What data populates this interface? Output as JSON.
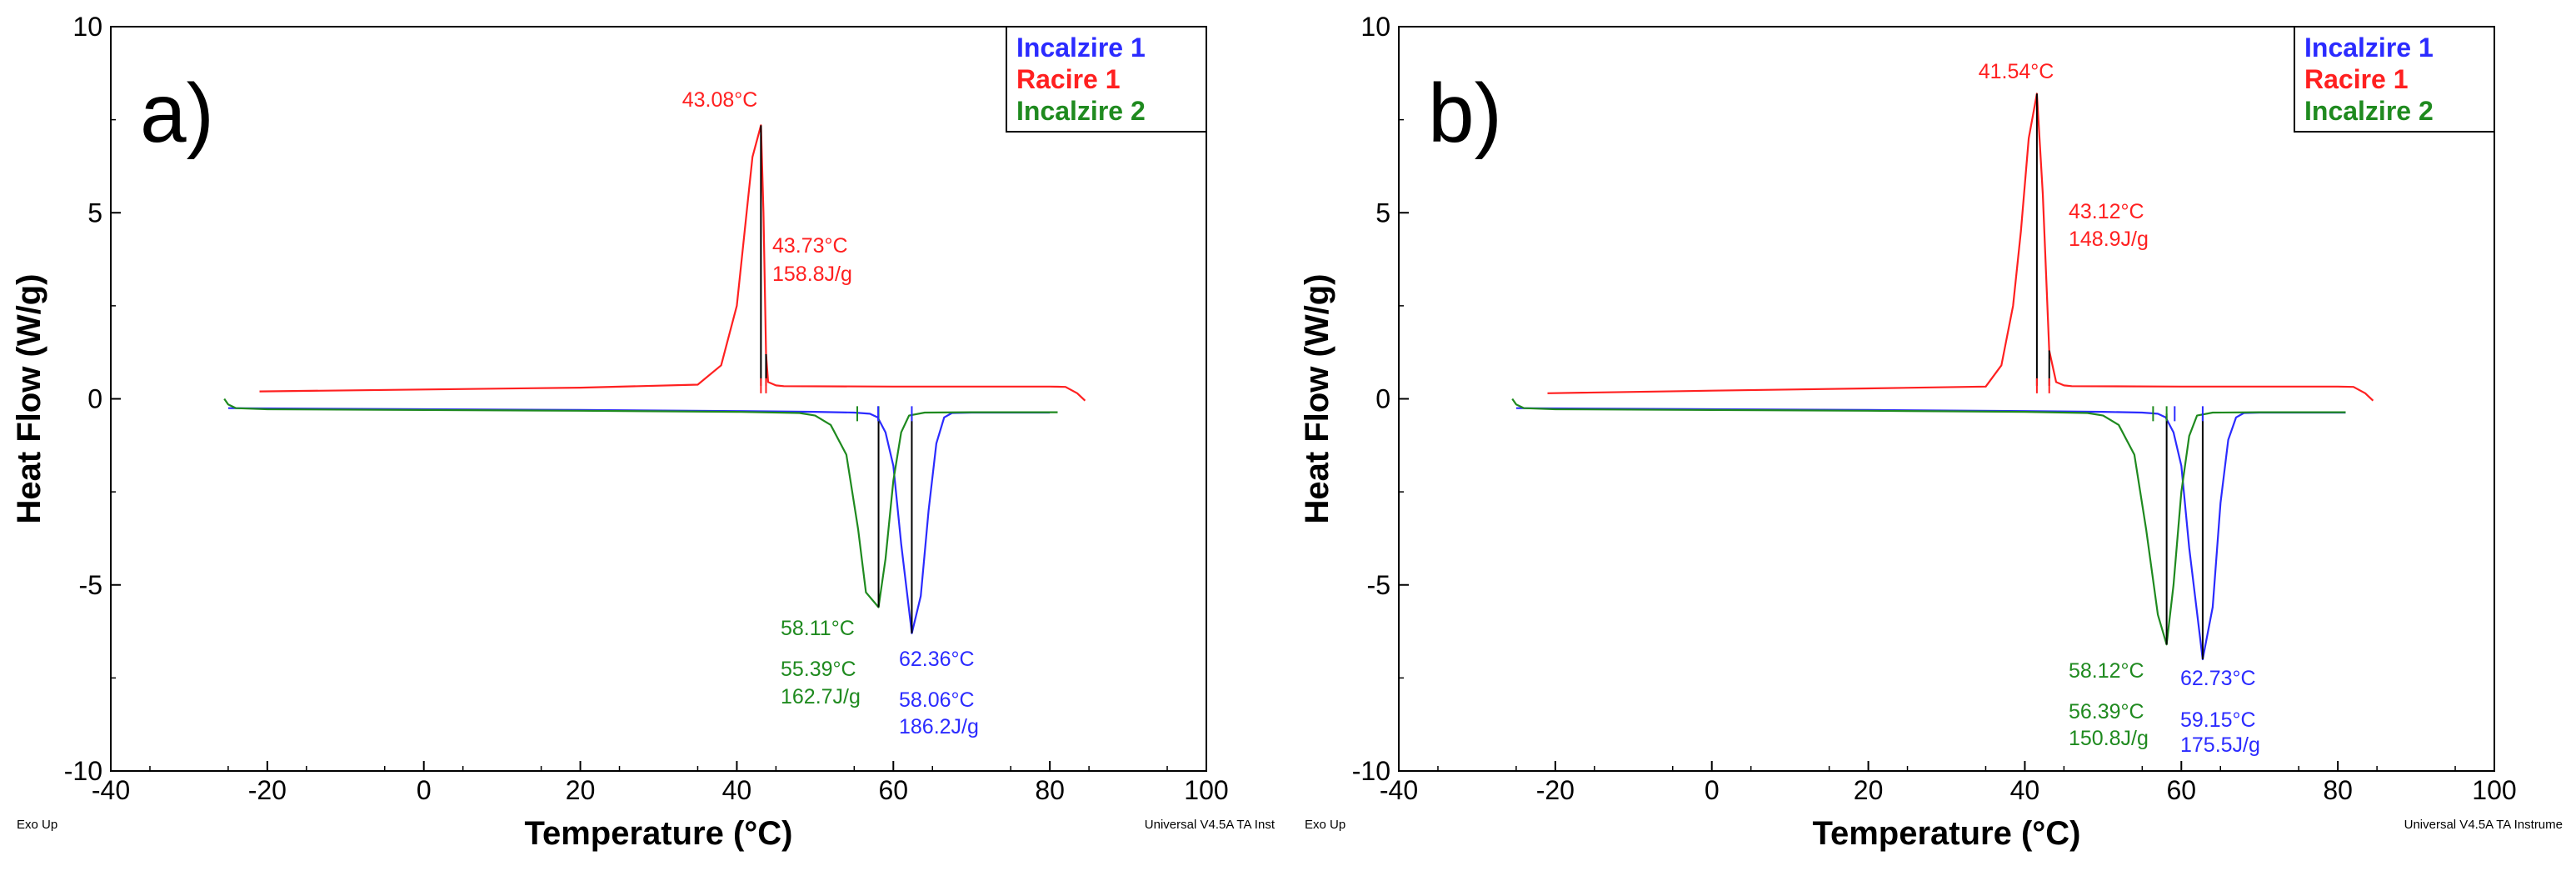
{
  "colors": {
    "incalzire1": "#2b2bff",
    "racire1": "#ff2020",
    "incalzire2": "#1f8a1f",
    "axis": "#000000"
  },
  "chart_data": [
    {
      "type": "line",
      "panel_label": "a)",
      "xlabel": "Temperature (°C)",
      "ylabel": "Heat Flow (W/g)",
      "xlim": [
        -40,
        100
      ],
      "ylim": [
        -10,
        10
      ],
      "xticks": [
        -40,
        -20,
        0,
        20,
        40,
        60,
        80,
        100
      ],
      "yticks": [
        -10,
        -5,
        0,
        5,
        10
      ],
      "xtick_labels": [
        "-40",
        "-20",
        "0",
        "20",
        "40",
        "60",
        "80",
        "100"
      ],
      "ytick_labels": [
        "-10",
        "-5",
        "0",
        "5",
        "10"
      ],
      "corner_left": "Exo Up",
      "corner_right": "Universal V4.5A TA Inst",
      "legend": [
        "Incalzire 1",
        "Racire 1",
        "Incalzire 2"
      ],
      "series": [
        {
          "name": "Incalzire 1",
          "color_key": "incalzire1",
          "x": [
            -25,
            0,
            20,
            40,
            50,
            55,
            57,
            58,
            59,
            60,
            61,
            62.36,
            63.5,
            64.5,
            65.5,
            66.5,
            67.5,
            70,
            80
          ],
          "y": [
            -0.25,
            -0.28,
            -0.3,
            -0.33,
            -0.35,
            -0.37,
            -0.4,
            -0.5,
            -0.9,
            -1.8,
            -3.9,
            -6.3,
            -5.3,
            -3.0,
            -1.2,
            -0.5,
            -0.38,
            -0.37,
            -0.37
          ]
        },
        {
          "name": "Racire 1",
          "color_key": "racire1",
          "x": [
            -21,
            0,
            20,
            35,
            38,
            40,
            41,
            42,
            43.08,
            43.4,
            43.73,
            44,
            45,
            46,
            60,
            80,
            82,
            83.5,
            84.5
          ],
          "y": [
            0.2,
            0.25,
            0.3,
            0.38,
            0.9,
            2.5,
            4.5,
            6.5,
            7.35,
            5.0,
            1.2,
            0.45,
            0.36,
            0.34,
            0.33,
            0.33,
            0.32,
            0.15,
            -0.05
          ]
        },
        {
          "name": "Incalzire 2",
          "color_key": "incalzire2",
          "x": [
            -25.5,
            -25,
            -24,
            -20,
            0,
            20,
            40,
            48,
            50,
            52,
            54,
            55.5,
            56.5,
            58.11,
            59,
            60,
            61,
            62,
            64,
            70,
            81
          ],
          "y": [
            0.0,
            -0.15,
            -0.25,
            -0.28,
            -0.3,
            -0.32,
            -0.35,
            -0.38,
            -0.45,
            -0.7,
            -1.5,
            -3.5,
            -5.2,
            -5.6,
            -4.3,
            -2.2,
            -0.9,
            -0.45,
            -0.37,
            -0.36,
            -0.36
          ]
        }
      ],
      "annotations": [
        {
          "text": "43.08°C",
          "color_key": "racire1"
        },
        {
          "text": "43.73°C",
          "color_key": "racire1"
        },
        {
          "text": "158.8J/g",
          "color_key": "racire1"
        },
        {
          "text": "58.11°C",
          "color_key": "incalzire2"
        },
        {
          "text": "55.39°C",
          "color_key": "incalzire2"
        },
        {
          "text": "162.7J/g",
          "color_key": "incalzire2"
        },
        {
          "text": "62.36°C",
          "color_key": "incalzire1"
        },
        {
          "text": "58.06°C",
          "color_key": "incalzire1"
        },
        {
          "text": "186.2J/g",
          "color_key": "incalzire1"
        }
      ]
    },
    {
      "type": "line",
      "panel_label": "b)",
      "xlabel": "Temperature (°C)",
      "ylabel": "Heat Flow (W/g)",
      "xlim": [
        -40,
        100
      ],
      "ylim": [
        -10,
        10
      ],
      "xticks": [
        -40,
        -20,
        0,
        20,
        40,
        60,
        80,
        100
      ],
      "yticks": [
        -10,
        -5,
        0,
        5,
        10
      ],
      "xtick_labels": [
        "-40",
        "-20",
        "0",
        "20",
        "40",
        "60",
        "80",
        "100"
      ],
      "ytick_labels": [
        "-10",
        "-5",
        "0",
        "5",
        "10"
      ],
      "corner_left": "Exo Up",
      "corner_right": "Universal V4.5A TA Instrume",
      "legend": [
        "Incalzire 1",
        "Racire 1",
        "Incalzire 2"
      ],
      "series": [
        {
          "name": "Incalzire 1",
          "color_key": "incalzire1",
          "x": [
            -25,
            0,
            20,
            40,
            50,
            55,
            57,
            58,
            59,
            60,
            61,
            62.73,
            64,
            65,
            66,
            67,
            68,
            70,
            81
          ],
          "y": [
            -0.25,
            -0.28,
            -0.3,
            -0.33,
            -0.35,
            -0.37,
            -0.4,
            -0.5,
            -0.9,
            -1.8,
            -4.0,
            -7.0,
            -5.6,
            -2.8,
            -1.1,
            -0.5,
            -0.38,
            -0.37,
            -0.37
          ]
        },
        {
          "name": "Racire 1",
          "color_key": "racire1",
          "x": [
            -21,
            0,
            20,
            35,
            37,
            38.5,
            39.5,
            40.5,
            41.54,
            42.3,
            43.12,
            44,
            45,
            46,
            60,
            80,
            82,
            83.5,
            84.5
          ],
          "y": [
            0.15,
            0.22,
            0.28,
            0.33,
            0.9,
            2.5,
            4.5,
            7.0,
            8.2,
            5.5,
            1.3,
            0.45,
            0.36,
            0.34,
            0.33,
            0.33,
            0.32,
            0.15,
            -0.05
          ]
        },
        {
          "name": "Incalzire 2",
          "color_key": "incalzire2",
          "x": [
            -25.5,
            -25,
            -24,
            -20,
            0,
            20,
            40,
            48,
            50,
            52,
            54,
            55.5,
            57,
            58.12,
            59,
            60,
            61,
            62,
            64,
            70,
            81
          ],
          "y": [
            0.0,
            -0.15,
            -0.25,
            -0.28,
            -0.3,
            -0.32,
            -0.35,
            -0.38,
            -0.45,
            -0.7,
            -1.5,
            -3.5,
            -5.8,
            -6.6,
            -5.0,
            -2.5,
            -1.0,
            -0.45,
            -0.37,
            -0.36,
            -0.36
          ]
        }
      ],
      "annotations": [
        {
          "text": "41.54°C",
          "color_key": "racire1"
        },
        {
          "text": "43.12°C",
          "color_key": "racire1"
        },
        {
          "text": "148.9J/g",
          "color_key": "racire1"
        },
        {
          "text": "58.12°C",
          "color_key": "incalzire2"
        },
        {
          "text": "56.39°C",
          "color_key": "incalzire2"
        },
        {
          "text": "150.8J/g",
          "color_key": "incalzire2"
        },
        {
          "text": "62.73°C",
          "color_key": "incalzire1"
        },
        {
          "text": "59.15°C",
          "color_key": "incalzire1"
        },
        {
          "text": "175.5J/g",
          "color_key": "incalzire1"
        }
      ]
    }
  ]
}
